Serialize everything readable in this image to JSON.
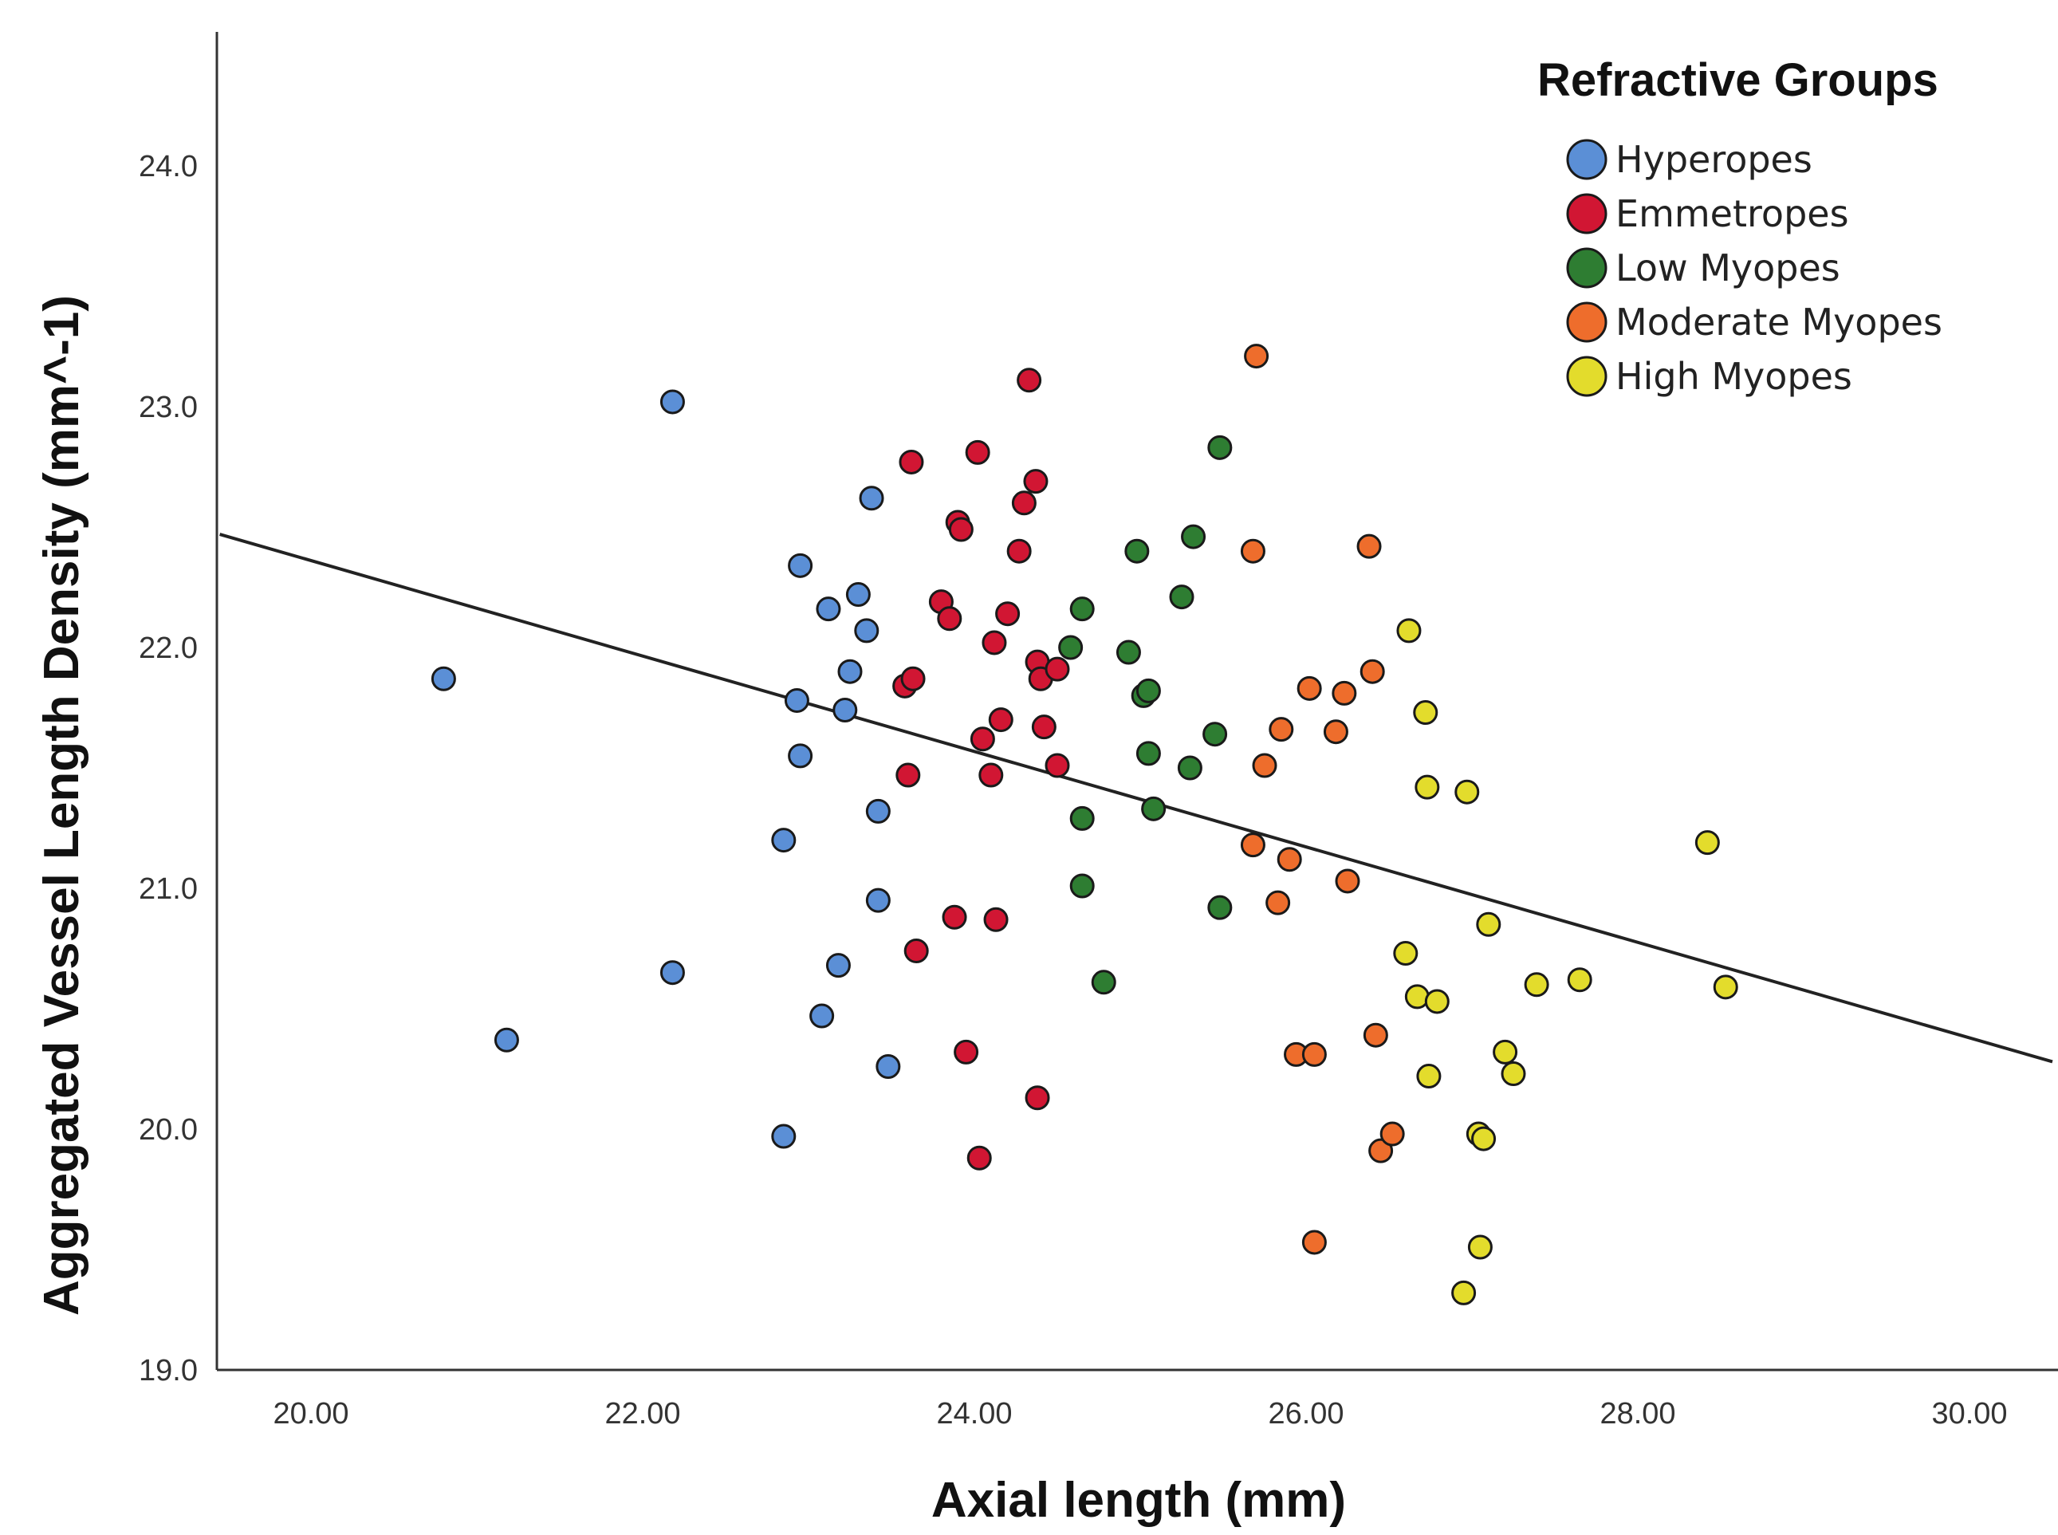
{
  "chart_data": {
    "type": "scatter",
    "title": "",
    "xlabel": "Axial length (mm)",
    "ylabel": "Aggregated Vessel Length Density (mm^-1)",
    "xlim": [
      19.45,
      30.5
    ],
    "ylim": [
      19.0,
      24.55
    ],
    "x_ticks": [
      "20.00",
      "22.00",
      "24.00",
      "26.00",
      "28.00",
      "30.00"
    ],
    "y_ticks": [
      "19.0",
      "20.0",
      "21.0",
      "22.0",
      "23.0",
      "24.0"
    ],
    "grid": false,
    "legend": {
      "title": "Refractive Groups",
      "placement": "top-right"
    },
    "fit_line": {
      "type": "linear",
      "points": [
        [
          19.45,
          22.47
        ],
        [
          30.5,
          20.28
        ]
      ]
    },
    "series": [
      {
        "name": "Hyperopes",
        "color": "#5b8fd6",
        "points": [
          [
            20.8,
            21.87
          ],
          [
            21.18,
            20.37
          ],
          [
            22.18,
            23.02
          ],
          [
            22.18,
            20.65
          ],
          [
            22.85,
            21.2
          ],
          [
            22.85,
            19.97
          ],
          [
            22.93,
            21.78
          ],
          [
            22.95,
            22.34
          ],
          [
            22.95,
            21.55
          ],
          [
            23.08,
            20.47
          ],
          [
            23.12,
            22.16
          ],
          [
            23.18,
            20.68
          ],
          [
            23.22,
            21.74
          ],
          [
            23.25,
            21.9
          ],
          [
            23.3,
            22.22
          ],
          [
            23.35,
            22.07
          ],
          [
            23.38,
            22.62
          ],
          [
            23.42,
            21.32
          ],
          [
            23.42,
            20.95
          ],
          [
            23.48,
            20.26
          ]
        ]
      },
      {
        "name": "Emmetropes",
        "color": "#d11633",
        "points": [
          [
            23.58,
            21.84
          ],
          [
            23.6,
            21.47
          ],
          [
            23.62,
            22.77
          ],
          [
            23.63,
            21.87
          ],
          [
            23.65,
            20.74
          ],
          [
            23.8,
            22.19
          ],
          [
            23.85,
            22.12
          ],
          [
            23.88,
            20.88
          ],
          [
            23.9,
            22.52
          ],
          [
            23.92,
            22.49
          ],
          [
            23.95,
            20.32
          ],
          [
            24.02,
            22.81
          ],
          [
            24.03,
            19.88
          ],
          [
            24.05,
            21.62
          ],
          [
            24.1,
            21.47
          ],
          [
            24.12,
            22.02
          ],
          [
            24.13,
            20.87
          ],
          [
            24.16,
            21.7
          ],
          [
            24.2,
            22.14
          ],
          [
            24.27,
            22.4
          ],
          [
            24.3,
            22.6
          ],
          [
            24.33,
            23.11
          ],
          [
            24.37,
            22.69
          ],
          [
            24.38,
            21.94
          ],
          [
            24.38,
            20.13
          ],
          [
            24.4,
            21.87
          ],
          [
            24.42,
            21.67
          ],
          [
            24.5,
            21.51
          ],
          [
            24.5,
            21.91
          ]
        ]
      },
      {
        "name": "Low Myopes",
        "color": "#2e7d32",
        "points": [
          [
            24.58,
            22.0
          ],
          [
            24.65,
            22.16
          ],
          [
            24.65,
            21.29
          ],
          [
            24.65,
            21.01
          ],
          [
            24.78,
            20.61
          ],
          [
            24.93,
            21.98
          ],
          [
            24.98,
            22.4
          ],
          [
            25.02,
            21.8
          ],
          [
            25.05,
            21.56
          ],
          [
            25.05,
            21.82
          ],
          [
            25.08,
            21.33
          ],
          [
            25.25,
            22.21
          ],
          [
            25.3,
            21.5
          ],
          [
            25.32,
            22.46
          ],
          [
            25.45,
            21.64
          ],
          [
            25.48,
            20.92
          ],
          [
            25.48,
            22.83
          ]
        ]
      },
      {
        "name": "Moderate Myopes",
        "color": "#ee6d2c",
        "points": [
          [
            25.68,
            22.4
          ],
          [
            25.68,
            21.18
          ],
          [
            25.7,
            23.21
          ],
          [
            25.75,
            21.51
          ],
          [
            25.83,
            20.94
          ],
          [
            25.85,
            21.66
          ],
          [
            25.9,
            21.12
          ],
          [
            25.94,
            20.31
          ],
          [
            26.02,
            21.83
          ],
          [
            26.05,
            20.31
          ],
          [
            26.05,
            19.53
          ],
          [
            26.18,
            21.65
          ],
          [
            26.23,
            21.81
          ],
          [
            26.25,
            21.03
          ],
          [
            26.38,
            22.42
          ],
          [
            26.4,
            21.9
          ],
          [
            26.42,
            20.39
          ],
          [
            26.45,
            19.91
          ],
          [
            26.52,
            19.98
          ]
        ]
      },
      {
        "name": "High Myopes",
        "color": "#e3dc2c",
        "points": [
          [
            26.6,
            20.73
          ],
          [
            26.62,
            22.07
          ],
          [
            26.67,
            20.55
          ],
          [
            26.72,
            21.73
          ],
          [
            26.73,
            21.42
          ],
          [
            26.74,
            20.22
          ],
          [
            26.79,
            20.53
          ],
          [
            26.95,
            19.32
          ],
          [
            26.97,
            21.4
          ],
          [
            27.04,
            19.98
          ],
          [
            27.05,
            19.51
          ],
          [
            27.07,
            19.96
          ],
          [
            27.1,
            20.85
          ],
          [
            27.2,
            20.32
          ],
          [
            27.25,
            20.23
          ],
          [
            27.39,
            20.6
          ],
          [
            27.65,
            20.62
          ],
          [
            28.42,
            21.19
          ],
          [
            28.53,
            20.59
          ]
        ]
      }
    ]
  }
}
